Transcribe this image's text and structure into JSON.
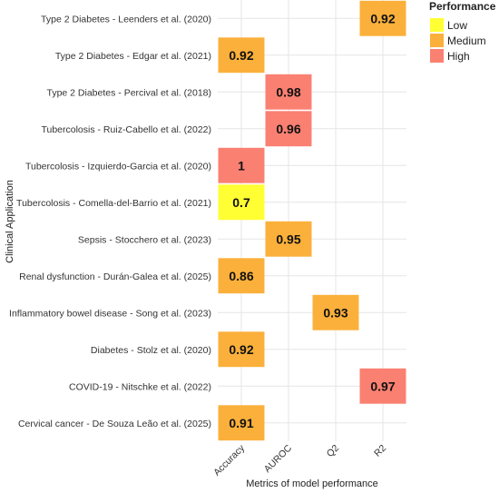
{
  "chart_data": {
    "type": "heatmap",
    "xlabel": "Metrics of model performance",
    "ylabel": "Clinical Application",
    "x_categories": [
      "Accuracy",
      "AUROC",
      "Q2",
      "R2"
    ],
    "y_categories": [
      "Type 2 Diabetes - Leenders et al. (2020)",
      "Type 2 Diabetes - Edgar et al. (2021)",
      "Type 2 Diabetes - Percival et al. (2018)",
      "Tubercolosis - Ruiz-Cabello et al. (2022)",
      "Tubercolosis - Izquierdo-Garcia et al. (2020)",
      "Tubercolosis - Comella-del-Barrio et al. (2021)",
      "Sepsis - Stocchero et al. (2023)",
      "Renal dysfunction - Durán-Galea et al. (2025)",
      "Inflammatory bowel disease - Song et al. (2023)",
      "Diabetes - Stolz et al. (2020)",
      "COVID-19 - Nitschke et al. (2022)",
      "Cervical cancer - De Souza Leão et al. (2025)"
    ],
    "cells": [
      {
        "row": 0,
        "metric": "R2",
        "value": 0.92,
        "label": "0.92",
        "category": "Medium"
      },
      {
        "row": 1,
        "metric": "Accuracy",
        "value": 0.92,
        "label": "0.92",
        "category": "Medium"
      },
      {
        "row": 2,
        "metric": "AUROC",
        "value": 0.98,
        "label": "0.98",
        "category": "High"
      },
      {
        "row": 3,
        "metric": "AUROC",
        "value": 0.96,
        "label": "0.96",
        "category": "High"
      },
      {
        "row": 4,
        "metric": "Accuracy",
        "value": 1,
        "label": "1",
        "category": "High"
      },
      {
        "row": 5,
        "metric": "Accuracy",
        "value": 0.7,
        "label": "0.7",
        "category": "Low"
      },
      {
        "row": 6,
        "metric": "AUROC",
        "value": 0.95,
        "label": "0.95",
        "category": "Medium"
      },
      {
        "row": 7,
        "metric": "Accuracy",
        "value": 0.86,
        "label": "0.86",
        "category": "Medium"
      },
      {
        "row": 8,
        "metric": "Q2",
        "value": 0.93,
        "label": "0.93",
        "category": "Medium"
      },
      {
        "row": 9,
        "metric": "Accuracy",
        "value": 0.92,
        "label": "0.92",
        "category": "Medium"
      },
      {
        "row": 10,
        "metric": "R2",
        "value": 0.97,
        "label": "0.97",
        "category": "High"
      },
      {
        "row": 11,
        "metric": "Accuracy",
        "value": 0.91,
        "label": "0.91",
        "category": "Medium"
      }
    ],
    "legend": {
      "title": "Performance",
      "placement": "top-right",
      "items": [
        {
          "label": "Low",
          "color": "#FFFF33"
        },
        {
          "label": "Medium",
          "color": "#FBB03B"
        },
        {
          "label": "High",
          "color": "#FA8072"
        }
      ]
    },
    "grid": true
  }
}
